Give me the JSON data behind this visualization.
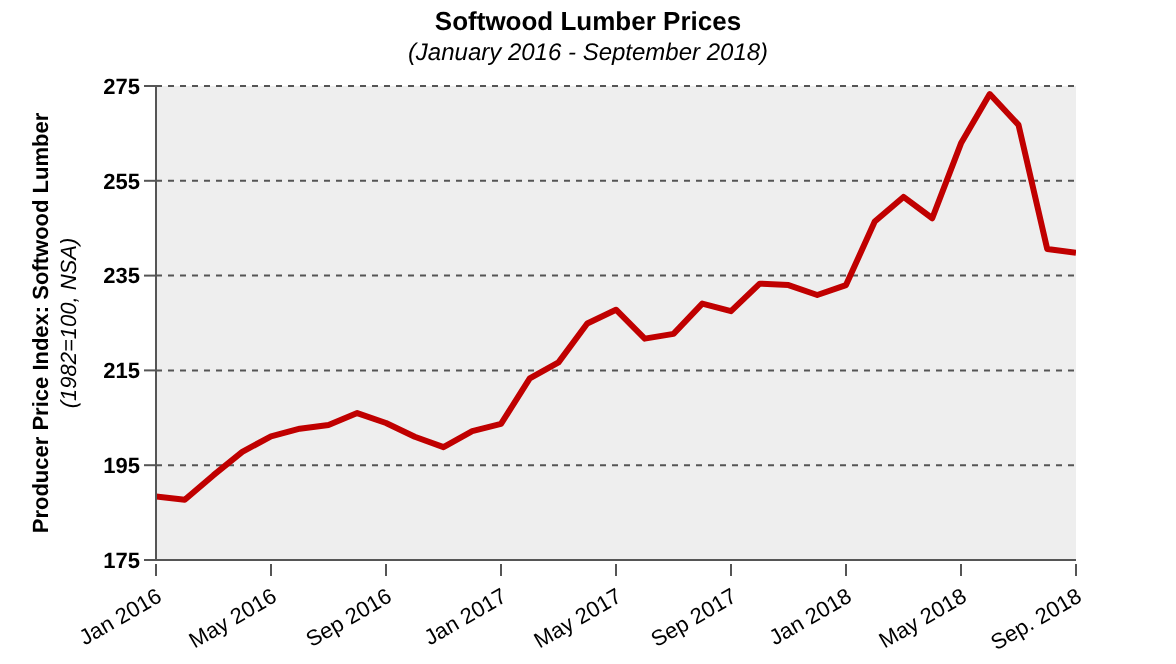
{
  "chart_data": {
    "type": "line",
    "title": "Softwood Lumber Prices",
    "subtitle": "(January 2016 - September 2018)",
    "ylabel": "Producer Price Index: Softwood Lumber\n(1982=100, NSA)",
    "categories": [
      "Jan 2016",
      null,
      null,
      null,
      "May 2016",
      null,
      null,
      null,
      "Sep 2016",
      null,
      null,
      null,
      "Jan 2017",
      null,
      null,
      null,
      "May 2017",
      null,
      null,
      null,
      "Sep 2017",
      null,
      null,
      null,
      "Jan 2018",
      null,
      null,
      null,
      "May 2018",
      null,
      null,
      null,
      "Sep. 2018"
    ],
    "series": [
      {
        "color": "#c00000",
        "values": [
          188.4,
          187.7,
          192.9,
          197.8,
          201.1,
          202.7,
          203.5,
          206,
          203.9,
          201,
          198.8,
          202.2,
          203.7,
          213.3,
          216.7,
          224.9,
          227.8,
          221.7,
          222.7,
          229.1,
          227.5,
          233.3,
          233,
          230.9,
          233,
          246.4,
          251.6,
          247.1,
          262.9,
          273.3,
          266.8,
          240.6,
          239.8
        ]
      }
    ],
    "ylim": [
      175,
      275
    ],
    "yticks": [
      175,
      195,
      215,
      235,
      255,
      275
    ],
    "grid": "y",
    "legend": false,
    "marker": "none",
    "line_style": "solid"
  }
}
